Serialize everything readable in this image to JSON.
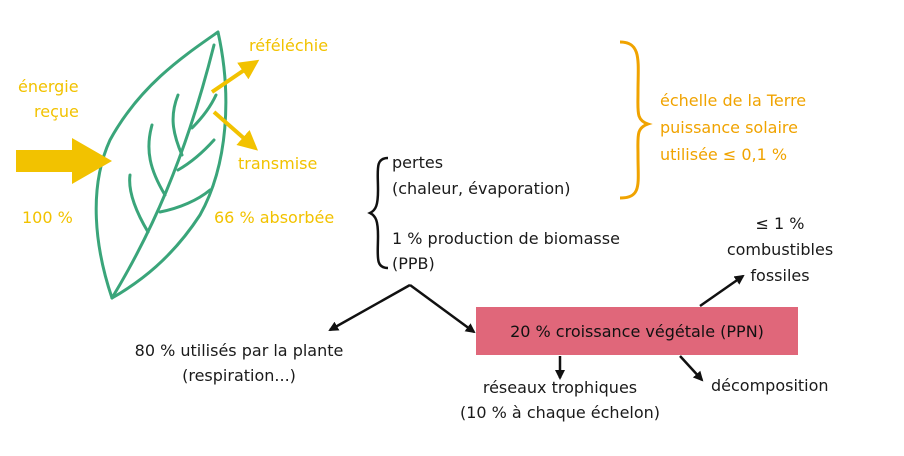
{
  "leaf": {
    "incoming_label_line1": "énergie",
    "incoming_label_line2": "reçue",
    "incoming_percent": "100 %",
    "reflected_label": "réféléchie",
    "transmitted_label": "transmise",
    "absorbed_label": "66 % absorbée"
  },
  "earth_scale": {
    "line1": "échelle de la Terre",
    "line2": "puissance solaire",
    "line3": "utilisée ≤ 0,1 %"
  },
  "absorbed_split": {
    "losses_line1": "pertes",
    "losses_line2": "(chaleur, évaporation)",
    "biomass_line1": "1 % production de biomasse",
    "biomass_line2": "(PPB)"
  },
  "outcomes": {
    "plant_use_line1": "80 % utilisés par la plante",
    "plant_use_line2": "(respiration...)",
    "growth_label": "20 % croissance végétale (PPN)",
    "fossil_line1": "≤ 1 %",
    "fossil_line2": "combustibles",
    "fossil_line3": "fossiles",
    "food_web_line1": "réseaux trophiques",
    "food_web_line2": "(10 % à chaque échelon)",
    "decomposition_label": "décomposition"
  },
  "colors": {
    "leaf_green": "#3aa57a",
    "energy_yellow": "#f2c200",
    "scale_orange": "#f0a300",
    "growth_box": "#e0677a"
  }
}
